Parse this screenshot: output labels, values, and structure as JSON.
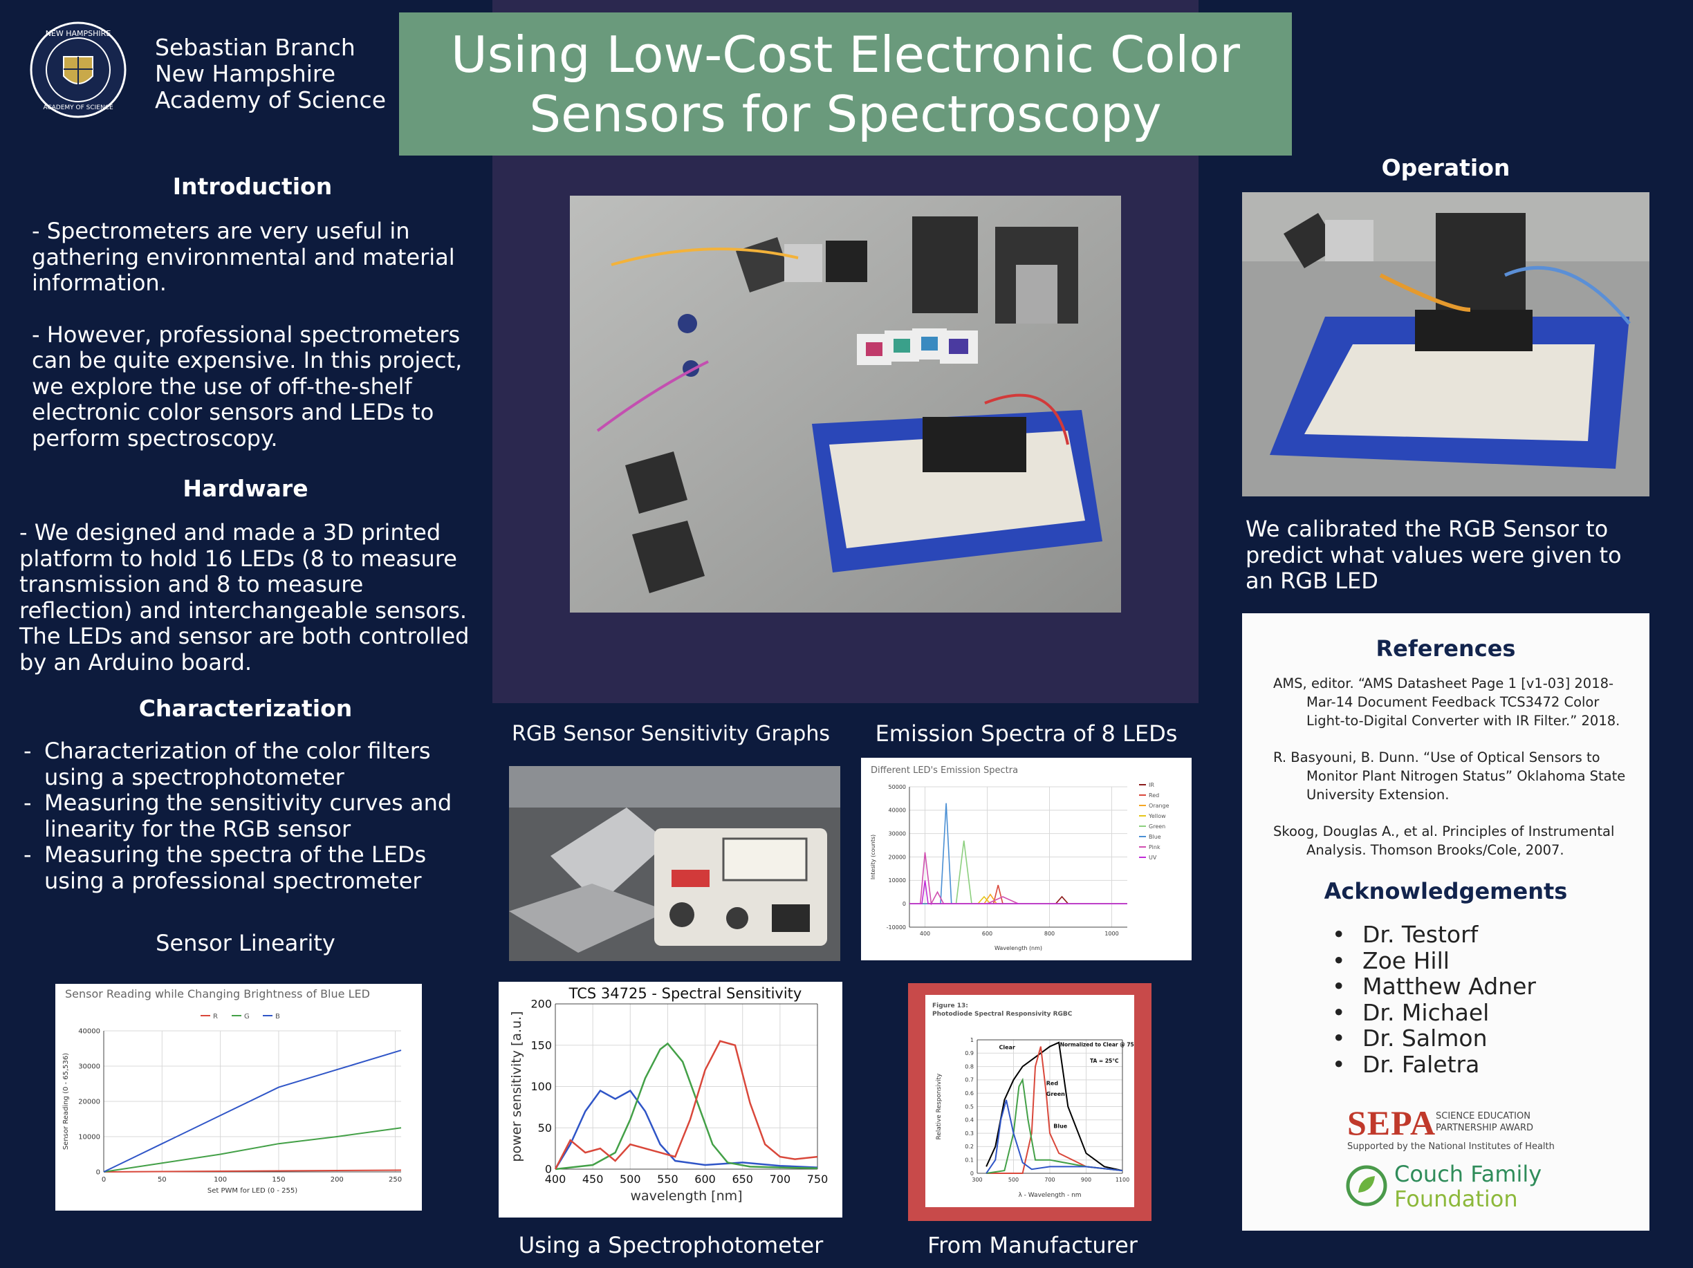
{
  "header": {
    "author_lines": [
      "Sebastian Branch",
      "New Hampshire",
      "Academy of Science"
    ],
    "title_lines": [
      "Using Low-Cost Electronic Color",
      "Sensors for Spectroscopy"
    ],
    "logo_text": "NEW HAMPSHIRE ACADEMY OF SCIENCE"
  },
  "introduction": {
    "heading": "Introduction",
    "p1": "- Spectrometers are very useful in gathering environmental and material information.",
    "p2": "- However, professional spectrometers can be quite expensive. In this project, we explore the use of off-the-shelf electronic color sensors and LEDs to perform spectroscopy."
  },
  "hardware": {
    "heading": "Hardware",
    "text": "- We designed and made a 3D printed platform to hold 16 LEDs (8 to measure transmission and 8 to measure reflection) and interchangeable sensors. The LEDs and sensor are both controlled by an Arduino board."
  },
  "characterization": {
    "heading": "Characterization",
    "items": [
      "Characterization of the color filters using a spectrophotometer",
      "Measuring the sensitivity curves and linearity for the RGB sensor",
      "Measuring the spectra of the LEDs using a professional spectrometer"
    ]
  },
  "captions": {
    "sensor_linearity": "Sensor Linearity",
    "rgb_graphs": "RGB Sensor Sensitivity Graphs",
    "emission": "Emission Spectra of 8 LEDs",
    "spectrophotometer": "Using a Spectrophotometer",
    "manufacturer": "From Manufacturer"
  },
  "operation": {
    "heading": "Operation",
    "text": "We calibrated the RGB Sensor to predict what values were given to an RGB LED"
  },
  "references": {
    "heading": "References",
    "items": [
      "AMS, editor. “AMS Datasheet Page 1 [v1-03] 2018-Mar-14 Document Feedback TCS3472 Color Light-to-Digital Converter with IR Filter.” 2018.",
      "R. Basyouni, B. Dunn. “Use of Optical Sensors to Monitor Plant Nitrogen Status” Oklahoma State University Extension.",
      "Skoog, Douglas A., et al. Principles of Instrumental Analysis. Thomson Brooks/Cole, 2007."
    ]
  },
  "acknowledgements": {
    "heading": "Acknowledgements",
    "items": [
      "Dr. Testorf",
      "Zoe Hill",
      "Matthew Adner",
      "Dr. Michael",
      "Dr. Salmon",
      "Dr. Faletra"
    ]
  },
  "sponsors": {
    "sepa_big": "SEPA",
    "sepa_small_1": "SCIENCE EDUCATION",
    "sepa_small_2": "PARTNERSHIP AWARD",
    "sepa_sub": "Supported by the National Institutes of Health",
    "couch_1": "Couch Family",
    "couch_2": "Foundation"
  },
  "colors": {
    "background": "#0d1b3d",
    "title_box": "#6a9a7c",
    "center_panel": "#2b284f",
    "red": "#d9473a",
    "green": "#43a047",
    "blue": "#2f55c7"
  },
  "chart_data": [
    {
      "type": "line",
      "title": "Sensor Reading while Changing Brightness of Blue LED",
      "xlabel": "Set PWM for LED (0 - 255)",
      "ylabel": "Sensor Reading (0 - 65,536)",
      "xlim": [
        0,
        255
      ],
      "ylim": [
        0,
        40000
      ],
      "xticks": [
        "0",
        "50",
        "100",
        "150",
        "200",
        "250"
      ],
      "yticks": [
        "0",
        "10000",
        "20000",
        "30000",
        "40000"
      ],
      "legend": "top-center",
      "series": [
        {
          "name": "R",
          "color": "#d9473a",
          "x": [
            0,
            50,
            100,
            150,
            200,
            255
          ],
          "y": [
            0,
            100,
            200,
            300,
            400,
            500
          ]
        },
        {
          "name": "G",
          "color": "#43a047",
          "x": [
            0,
            50,
            100,
            150,
            200,
            255
          ],
          "y": [
            0,
            2500,
            5000,
            8000,
            10000,
            12500
          ]
        },
        {
          "name": "B",
          "color": "#2f55c7",
          "x": [
            0,
            25,
            50,
            100,
            150,
            200,
            255
          ],
          "y": [
            0,
            4000,
            8000,
            16000,
            24000,
            29000,
            34500
          ]
        }
      ]
    },
    {
      "type": "line",
      "title": "TCS 34725 - Spectral Sensitivity",
      "xlabel": "wavelength [nm]",
      "ylabel": "power sensitivity [a.u.]",
      "xlim": [
        400,
        750
      ],
      "ylim": [
        0,
        200
      ],
      "xticks": [
        "400",
        "450",
        "500",
        "550",
        "600",
        "650",
        "700",
        "750"
      ],
      "yticks": [
        "0",
        "50",
        "100",
        "150",
        "200"
      ],
      "grid": true,
      "series": [
        {
          "color": "#2f55c7",
          "x": [
            400,
            420,
            440,
            460,
            480,
            500,
            520,
            540,
            560,
            600,
            650,
            700,
            750
          ],
          "y": [
            0,
            30,
            70,
            95,
            85,
            95,
            70,
            30,
            10,
            5,
            8,
            4,
            2
          ]
        },
        {
          "color": "#43a047",
          "x": [
            400,
            450,
            480,
            500,
            520,
            540,
            550,
            570,
            590,
            610,
            630,
            660,
            700,
            750
          ],
          "y": [
            0,
            5,
            20,
            60,
            110,
            145,
            152,
            130,
            80,
            30,
            8,
            3,
            2,
            1
          ]
        },
        {
          "color": "#d9473a",
          "x": [
            400,
            420,
            440,
            460,
            480,
            500,
            540,
            560,
            580,
            600,
            620,
            640,
            660,
            680,
            700,
            720,
            750
          ],
          "y": [
            0,
            35,
            20,
            25,
            10,
            30,
            20,
            15,
            60,
            120,
            155,
            150,
            80,
            30,
            15,
            12,
            15
          ]
        }
      ]
    },
    {
      "type": "line",
      "title": "Different LED's Emission Spectra",
      "xlabel": "Wavelength (nm)",
      "ylabel": "Intesity (counts)",
      "xlim": [
        350,
        1050
      ],
      "ylim": [
        -10000,
        50000
      ],
      "xticks": [
        "400",
        "600",
        "800",
        "1000"
      ],
      "yticks": [
        "-10000",
        "0",
        "10000",
        "20000",
        "30000",
        "40000",
        "50000"
      ],
      "legend": "right",
      "series": [
        {
          "name": "IR",
          "color": "#8b1a1a",
          "x": [
            350,
            820,
            840,
            860,
            1050
          ],
          "y": [
            0,
            0,
            3000,
            0,
            0
          ]
        },
        {
          "name": "Red",
          "color": "#d9473a",
          "x": [
            350,
            620,
            635,
            650,
            1050
          ],
          "y": [
            0,
            0,
            8000,
            0,
            0
          ]
        },
        {
          "name": "Orange",
          "color": "#f5a623",
          "x": [
            350,
            590,
            610,
            630,
            1050
          ],
          "y": [
            0,
            0,
            4000,
            0,
            0
          ]
        },
        {
          "name": "Yellow",
          "color": "#e6c619",
          "x": [
            350,
            570,
            590,
            610,
            1050
          ],
          "y": [
            0,
            0,
            3000,
            0,
            0
          ]
        },
        {
          "name": "Green",
          "color": "#8ccf7e",
          "x": [
            350,
            500,
            525,
            550,
            1050
          ],
          "y": [
            0,
            0,
            27000,
            0,
            0
          ]
        },
        {
          "name": "Blue",
          "color": "#4a8fd4",
          "x": [
            350,
            450,
            468,
            485,
            1050
          ],
          "y": [
            0,
            0,
            43000,
            0,
            0
          ]
        },
        {
          "name": "Pink",
          "color": "#d04fb0",
          "x": [
            350,
            385,
            400,
            420,
            440,
            460,
            600,
            650,
            700,
            1050
          ],
          "y": [
            0,
            0,
            22000,
            0,
            5000,
            0,
            0,
            3000,
            0,
            0
          ]
        },
        {
          "name": "UV",
          "color": "#c02bd6",
          "x": [
            350,
            390,
            400,
            410,
            1050
          ],
          "y": [
            0,
            0,
            10000,
            0,
            0
          ]
        }
      ]
    },
    {
      "type": "line",
      "title": "Photodiode Spectral Responsivity RGBC",
      "figure_label": "Figure 13:",
      "xlabel": "λ - Wavelength - nm",
      "ylabel": "Relative Responsivity",
      "xlim": [
        300,
        1100
      ],
      "ylim": [
        0,
        1
      ],
      "xticks": [
        "300",
        "500",
        "700",
        "900",
        "1100"
      ],
      "yticks": [
        "0",
        "0.1",
        "0.2",
        "0.3",
        "0.4",
        "0.5",
        "0.6",
        "0.7",
        "0.8",
        "0.9",
        "1"
      ],
      "annotations": [
        "Clear",
        "Red",
        "Green",
        "Blue",
        "Normalized to Clear @ 755 nm",
        "TA = 25°C"
      ],
      "series": [
        {
          "name": "Clear",
          "color": "#000000",
          "x": [
            350,
            400,
            450,
            500,
            550,
            600,
            650,
            700,
            750,
            800,
            900,
            1000,
            1100
          ],
          "y": [
            0.05,
            0.2,
            0.55,
            0.7,
            0.8,
            0.85,
            0.9,
            0.95,
            0.98,
            0.5,
            0.15,
            0.05,
            0.02
          ]
        },
        {
          "name": "Red",
          "color": "#d9473a",
          "x": [
            350,
            550,
            600,
            620,
            650,
            680,
            700,
            750,
            900,
            1100
          ],
          "y": [
            0,
            0,
            0.3,
            0.8,
            0.95,
            0.6,
            0.3,
            0.15,
            0.05,
            0.02
          ]
        },
        {
          "name": "Green",
          "color": "#43a047",
          "x": [
            350,
            450,
            500,
            530,
            550,
            580,
            620,
            700,
            900,
            1100
          ],
          "y": [
            0,
            0.02,
            0.3,
            0.65,
            0.7,
            0.4,
            0.1,
            0.1,
            0.05,
            0.02
          ]
        },
        {
          "name": "Blue",
          "color": "#2f55c7",
          "x": [
            350,
            400,
            430,
            460,
            500,
            550,
            600,
            700,
            900,
            1100
          ],
          "y": [
            0,
            0.1,
            0.4,
            0.55,
            0.3,
            0.08,
            0.03,
            0.05,
            0.05,
            0.02
          ]
        }
      ]
    }
  ]
}
